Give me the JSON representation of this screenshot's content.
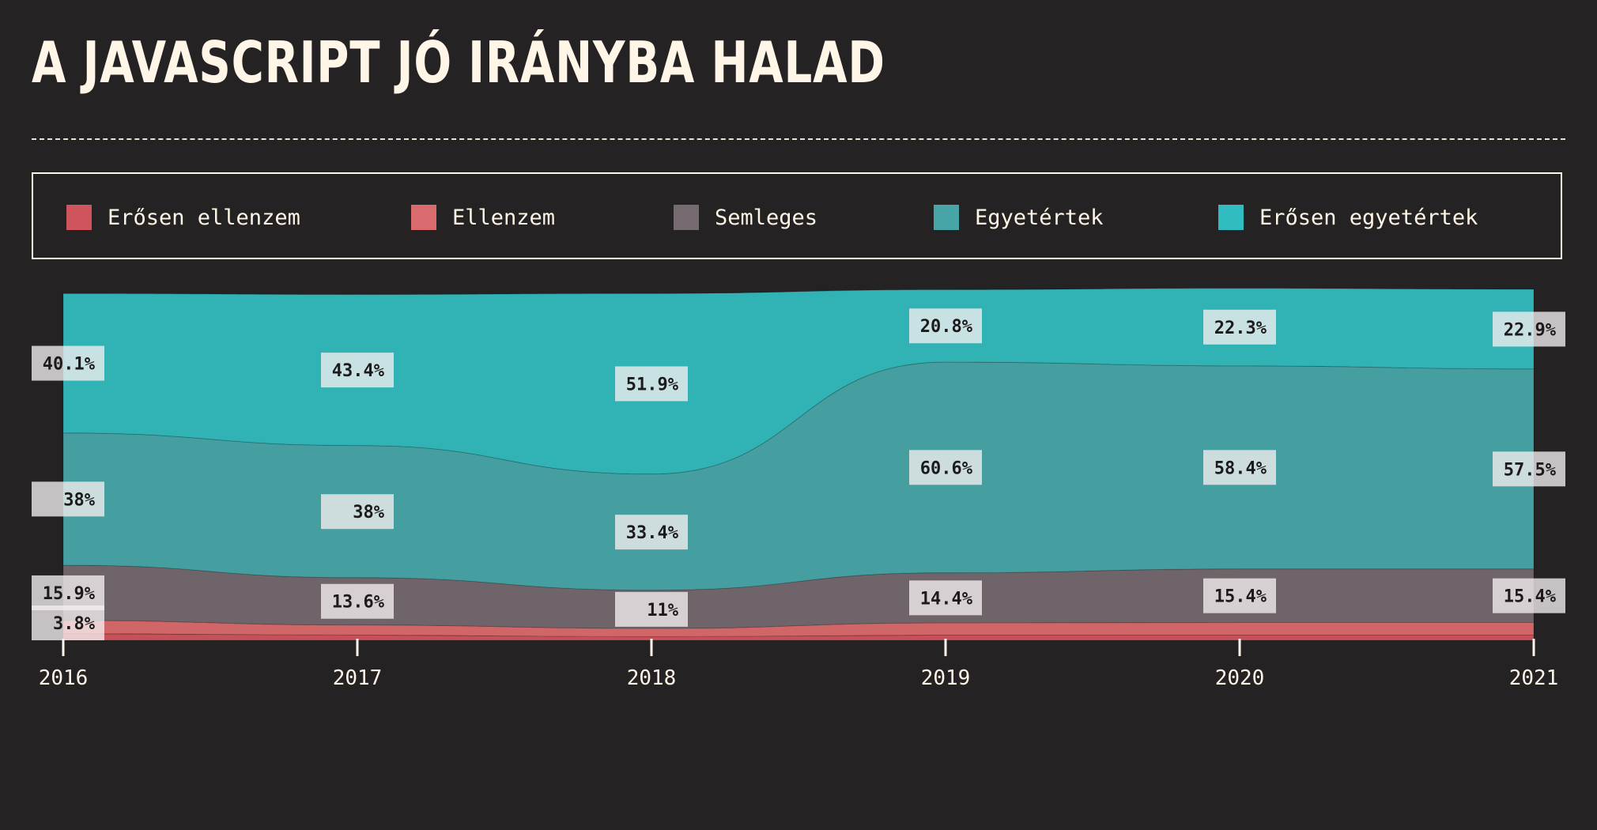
{
  "title": "A JAVASCRIPT JÓ IRÁNYBA HALAD",
  "colors": {
    "background": "#252224",
    "text": "#fff6e8",
    "strongly_disagree": "#d0545e",
    "disagree": "#d96a6d",
    "neutral": "#756a70",
    "agree": "#47a5a7",
    "strongly_agree": "#31bcbf"
  },
  "legend": [
    {
      "label": "Erősen ellenzem",
      "color": "#d0545e"
    },
    {
      "label": "Ellenzem",
      "color": "#d96a6d"
    },
    {
      "label": "Semleges",
      "color": "#756a70"
    },
    {
      "label": "Egyetértek",
      "color": "#47a5a7"
    },
    {
      "label": "Erősen egyetértek",
      "color": "#31bcbf"
    }
  ],
  "chart_data": {
    "type": "area",
    "stacked": true,
    "normalized_to_percent": true,
    "x": [
      "2016",
      "2017",
      "2018",
      "2019",
      "2020",
      "2021"
    ],
    "series": [
      {
        "name": "Erősen ellenzem",
        "values": [
          1.9,
          1.5,
          1.0,
          1.5,
          1.5,
          1.5
        ]
      },
      {
        "name": "Ellenzem",
        "values": [
          3.8,
          2.9,
          2.4,
          3.5,
          3.6,
          3.6
        ]
      },
      {
        "name": "Semleges",
        "values": [
          15.9,
          13.6,
          11,
          14.4,
          15.4,
          15.4
        ]
      },
      {
        "name": "Egyetértek",
        "values": [
          38,
          38,
          33.4,
          60.6,
          58.4,
          57.5
        ]
      },
      {
        "name": "Erősen egyetértek",
        "values": [
          40.1,
          43.4,
          51.9,
          20.8,
          22.3,
          22.9
        ]
      }
    ],
    "labels": [
      {
        "series": "Ellenzem",
        "values": [
          "3.8%",
          null,
          null,
          null,
          null,
          null
        ]
      },
      {
        "series": "Semleges",
        "values": [
          "15.9%",
          "13.6%",
          "11%",
          "14.4%",
          "15.4%",
          "15.4%"
        ]
      },
      {
        "series": "Egyetértek",
        "values": [
          "38%",
          "38%",
          "33.4%",
          "60.6%",
          "58.4%",
          "57.5%"
        ]
      },
      {
        "series": "Erősen egyetértek",
        "values": [
          "40.1%",
          "43.4%",
          "51.9%",
          "20.8%",
          "22.3%",
          "22.9%"
        ]
      }
    ],
    "ylim": [
      0,
      100
    ],
    "grid": false,
    "legend_position": "top"
  }
}
